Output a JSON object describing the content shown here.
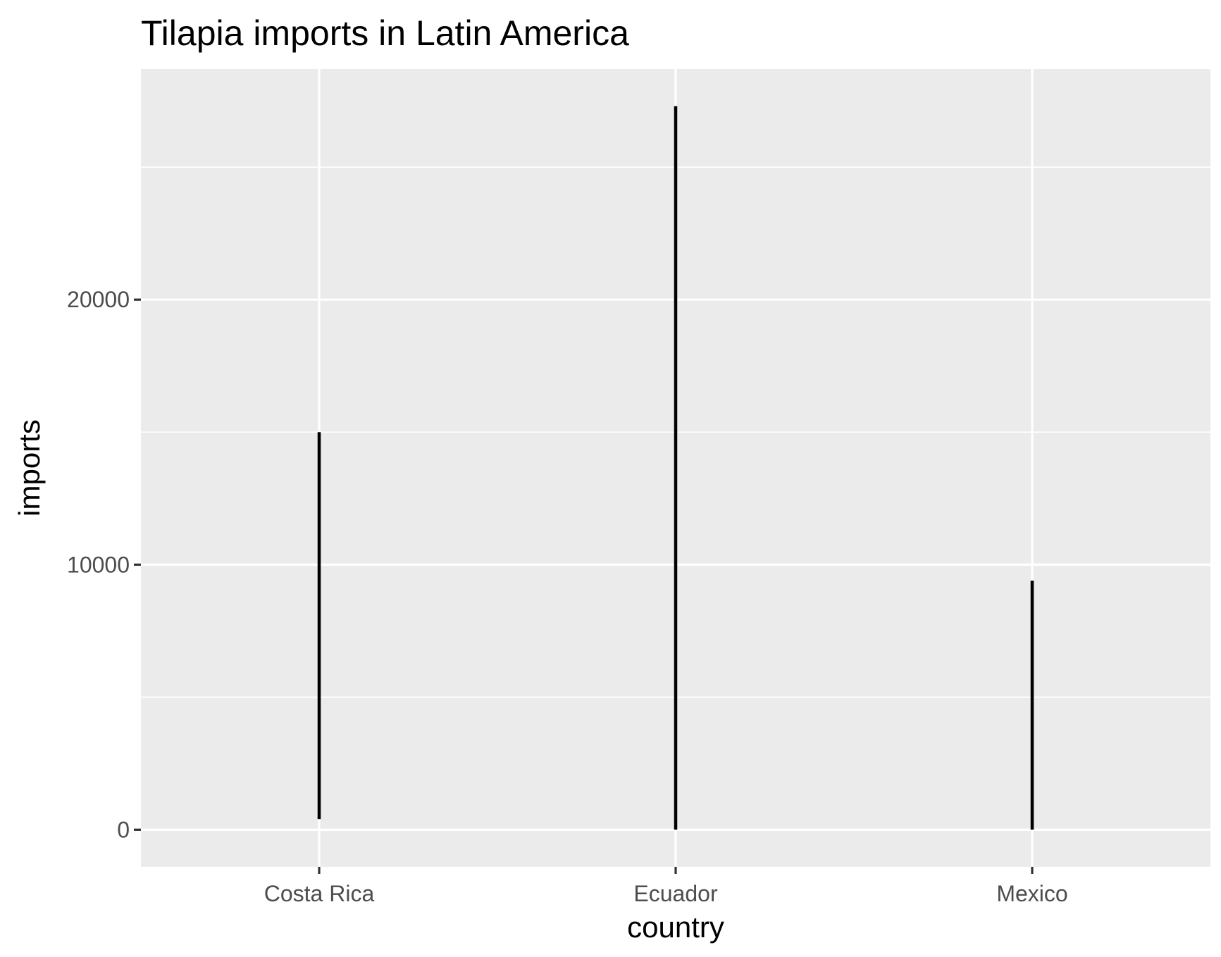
{
  "chart_data": {
    "type": "linerange",
    "title": "Tilapia imports in Latin America",
    "xlabel": "country",
    "ylabel": "imports",
    "categories": [
      "Costa Rica",
      "Ecuador",
      "Mexico"
    ],
    "ranges": [
      {
        "category": "Costa Rica",
        "min": 400,
        "max": 15000
      },
      {
        "category": "Ecuador",
        "min": 0,
        "max": 27300
      },
      {
        "category": "Mexico",
        "min": 0,
        "max": 9400
      }
    ],
    "yticks": [
      0,
      10000,
      20000
    ],
    "ylim": [
      -1400,
      28700
    ],
    "grid": true,
    "colors": {
      "panel": "#ebebeb",
      "grid": "#ffffff",
      "line": "#000000",
      "tick": "#333333"
    }
  }
}
